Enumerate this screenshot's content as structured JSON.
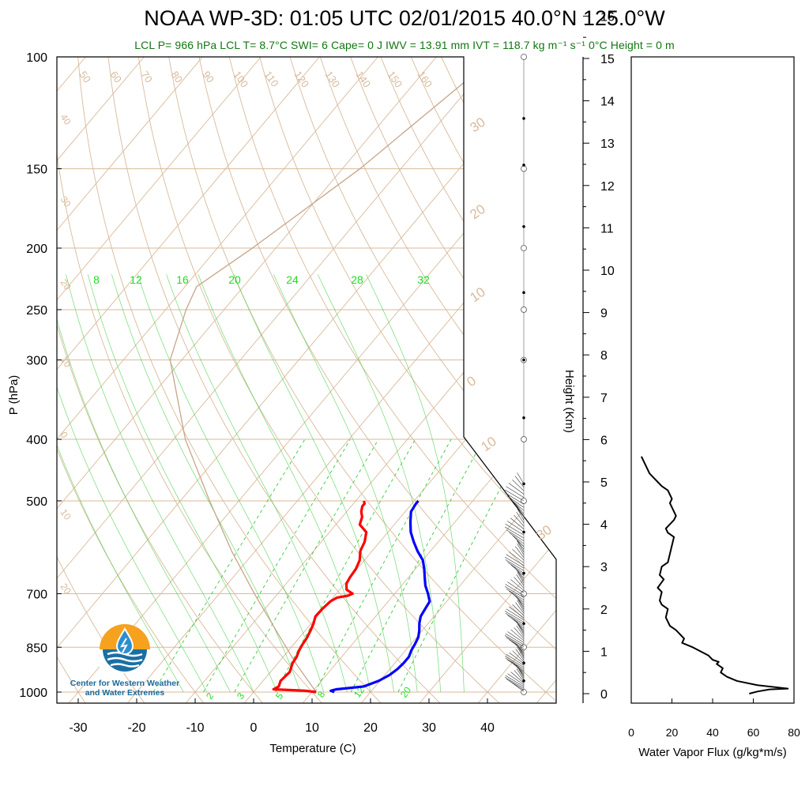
{
  "title": "NOAA WP-3D: 01:05 UTC 02/01/2015  40.0°N 125.0°W",
  "subtitle": "LCL P= 966 hPa  LCL T= 8.7°C  SWI= 6  Cape= 0 J  IWV = 13.91 mm  IVT = 118.7 kg m⁻¹ s⁻¹  0°C Height = 0 m",
  "logo": {
    "line1": "Center for Western Weather",
    "line2": "and Water Extremes",
    "colors": {
      "sun": "#f6a21e",
      "water": "#1b6fa3",
      "drop": "#2b8fd0"
    }
  },
  "colors": {
    "temperature": "#ff0000",
    "dewpoint": "#0000ff",
    "isotherm": "#d8b99a",
    "dry_adiabat": "#d8b99a",
    "moist_adiabat": "#33cc33",
    "mixing_ratio": "#33cc33",
    "parcel": "#c8a488",
    "vapor_flux": "#000000"
  },
  "chart_data": [
    {
      "type": "line",
      "name": "skew-T diagram",
      "xlabel": "Temperature (C)",
      "ylabel": "P (hPa)",
      "xlim": [
        -34,
        52
      ],
      "ylim": [
        1050,
        100
      ],
      "y_scale": "log",
      "x_ticks": [
        "-30",
        "-20",
        "-10",
        "0",
        "10",
        "20",
        "30",
        "40"
      ],
      "y_ticks": [
        "100",
        "150",
        "200",
        "250",
        "300",
        "400",
        "500",
        "700",
        "850",
        "1000"
      ],
      "skewed_isotherm_labels": [
        "50",
        "60",
        "70",
        "80",
        "90",
        "100",
        "110",
        "120",
        "130",
        "140",
        "150",
        "160"
      ],
      "left_labels": [
        "40",
        "30",
        "20",
        "10",
        "0",
        "10",
        "20"
      ],
      "right_labels": [
        "30",
        "20",
        "10",
        "0",
        "10",
        "30"
      ],
      "moist_adiabat_labels": [
        "8",
        "12",
        "16",
        "20",
        "24",
        "28",
        "32"
      ],
      "mixing_ratio_labels": [
        "2",
        "3",
        "5",
        "8",
        "12",
        "20"
      ],
      "series": [
        {
          "key": "temperature",
          "p": [
            1000,
            995,
            990,
            980,
            960,
            930,
            900,
            880,
            860,
            840,
            820,
            800,
            780,
            760,
            740,
            720,
            710,
            705,
            700,
            690,
            675,
            660,
            640,
            620,
            600,
            580,
            560,
            545,
            530,
            520,
            510,
            505,
            500
          ],
          "t": [
            10.7,
            8.5,
            3.0,
            3.5,
            3.0,
            3.3,
            2.5,
            2.3,
            1.8,
            1.5,
            1.3,
            0.9,
            0.4,
            -0.3,
            -0.2,
            0.1,
            0.7,
            2.3,
            2.8,
            1.2,
            0.3,
            0.0,
            -0.2,
            -0.8,
            -2.0,
            -2.6,
            -3.7,
            -5.9,
            -6.6,
            -7.5,
            -8.1,
            -8.1,
            -8.6
          ]
        },
        {
          "key": "dewpoint",
          "p": [
            1000,
            995,
            990,
            980,
            960,
            940,
            920,
            900,
            880,
            860,
            840,
            820,
            800,
            780,
            760,
            740,
            720,
            700,
            680,
            660,
            640,
            620,
            600,
            580,
            560,
            540,
            520,
            505,
            500
          ],
          "t": [
            13.8,
            13.0,
            13.8,
            18.0,
            19.8,
            20.8,
            21.3,
            21.5,
            21.5,
            21.0,
            20.7,
            20.3,
            19.5,
            18.5,
            17.7,
            17.4,
            17.1,
            15.7,
            14.1,
            12.8,
            11.5,
            10.0,
            7.8,
            5.8,
            3.9,
            2.4,
            1.0,
            0.7,
            0.7
          ]
        },
        {
          "key": "parcel",
          "p": [
            1000,
            900,
            800,
            700,
            600,
            500,
            400,
            300,
            250,
            230,
            200,
            150,
            100
          ],
          "t": [
            10.7,
            3.0,
            -5.0,
            -14.0,
            -24.0,
            -35.0,
            -48.0,
            -62.0,
            -66.5,
            -68.0,
            -64.0,
            -57.0,
            -50.0
          ]
        }
      ]
    },
    {
      "type": "line",
      "name": "water vapor flux profile",
      "xlabel": "Water Vapor Flux (g/kg*m/s)",
      "ylabel": "Height (Km)",
      "xlim": [
        0,
        80
      ],
      "ylim": [
        -0.2,
        16.5
      ],
      "x_ticks": [
        "0",
        "20",
        "40",
        "60",
        "80"
      ],
      "y_ticks": [
        "0",
        "1",
        "2",
        "3",
        "4",
        "5",
        "6",
        "7",
        "8",
        "9",
        "10",
        "11",
        "12",
        "13",
        "14",
        "15",
        "16"
      ],
      "x": [
        58,
        62,
        68,
        77,
        62,
        52,
        47,
        44,
        45,
        42,
        43,
        40,
        38,
        34,
        30,
        25,
        26,
        24,
        22,
        19,
        17,
        18,
        15,
        14,
        15,
        13,
        16,
        14,
        15,
        18,
        19,
        20,
        21,
        18,
        17,
        19,
        21,
        22,
        20,
        19,
        20,
        18,
        15,
        13,
        11,
        9,
        8,
        7,
        6,
        5
      ],
      "y": [
        0.0,
        0.05,
        0.1,
        0.12,
        0.2,
        0.3,
        0.4,
        0.5,
        0.6,
        0.7,
        0.75,
        0.8,
        0.9,
        1.0,
        1.1,
        1.2,
        1.3,
        1.4,
        1.5,
        1.6,
        1.8,
        2.0,
        2.1,
        2.2,
        2.4,
        2.5,
        2.7,
        2.8,
        3.0,
        3.1,
        3.3,
        3.5,
        3.7,
        3.8,
        3.9,
        4.0,
        4.1,
        4.2,
        4.4,
        4.5,
        4.6,
        4.8,
        4.9,
        5.0,
        5.1,
        5.2,
        5.3,
        5.4,
        5.5,
        5.6
      ]
    }
  ]
}
